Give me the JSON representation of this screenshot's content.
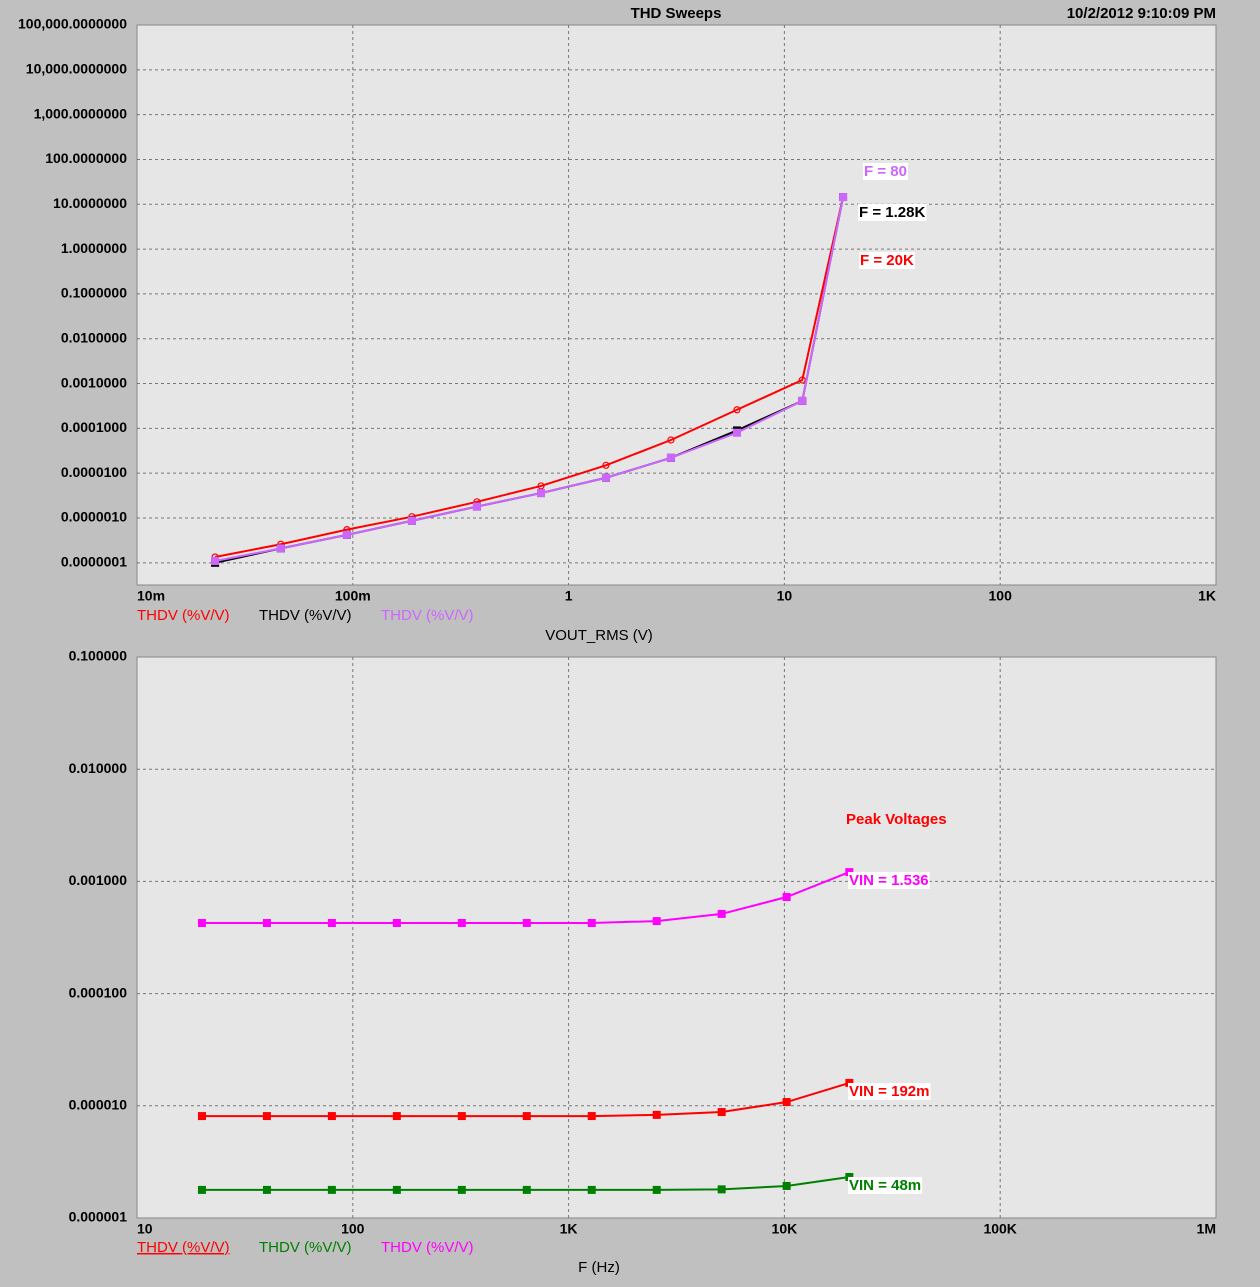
{
  "chart_data": [
    {
      "type": "line",
      "title": "THD Sweeps",
      "subtitle": "10/2/2012 9:10:09 PM",
      "x_label": "VOUT_RMS (V)",
      "xlog": true,
      "ylog": true,
      "grid": true,
      "xlim": [
        0.01,
        1000
      ],
      "ylim": [
        3.2e-08,
        100000
      ],
      "xticks": [
        {
          "value": 0.01,
          "label": "10m"
        },
        {
          "value": 0.1,
          "label": "100m"
        },
        1,
        10,
        100,
        {
          "value": 1000,
          "label": "1K"
        }
      ],
      "yticks": [
        {
          "value": 100000,
          "label": "100,000.0000000"
        },
        {
          "value": 10000,
          "label": "10,000.0000000"
        },
        {
          "value": 1000,
          "label": "1,000.0000000"
        },
        {
          "value": 100,
          "label": "100.0000000"
        },
        {
          "value": 10,
          "label": "10.0000000"
        },
        {
          "value": 1,
          "label": "1.0000000"
        },
        {
          "value": 0.1,
          "label": "0.1000000"
        },
        {
          "value": 0.01,
          "label": "0.0100000"
        },
        {
          "value": 0.001,
          "label": "0.0010000"
        },
        {
          "value": 0.0001,
          "label": "0.0001000"
        },
        {
          "value": 1e-05,
          "label": "0.0000100"
        },
        {
          "value": 1e-06,
          "label": "0.0000010"
        },
        {
          "value": 1e-07,
          "label": "0.0000001"
        }
      ],
      "x": [
        0.023,
        0.0464,
        0.0939,
        0.188,
        0.376,
        0.745,
        1.49,
        2.98,
        6.03,
        12.1,
        18.7
      ],
      "series": [
        {
          "name": "THDV (%V/V)",
          "color": "#ff0000",
          "marker": "circle",
          "values": [
            1.35e-07,
            2.6e-07,
            5.5e-07,
            1.07e-06,
            2.3e-06,
            5.2e-06,
            1.5e-05,
            5.5e-05,
            0.00026,
            0.0012,
            14.5
          ]
        },
        {
          "name": "THDV (%V/V)",
          "color": "#000000",
          "marker": "square",
          "values": [
            1e-07,
            2.1e-07,
            4.2e-07,
            8.7e-07,
            1.8e-06,
            3.6e-06,
            7.9e-06,
            2.2e-05,
            9e-05,
            0.00041,
            14.5
          ]
        },
        {
          "name": "THDV (%V/V)",
          "color": "#cc66ff",
          "marker": "square",
          "values": [
            1.1e-07,
            2.1e-07,
            4.2e-07,
            8.7e-07,
            1.8e-06,
            3.6e-06,
            7.9e-06,
            2.2e-05,
            8e-05,
            0.00041,
            14.5
          ]
        }
      ],
      "annotations": [
        {
          "text": "F = 80",
          "color": "#cc66ff"
        },
        {
          "text": "F = 1.28K",
          "color": "#000000"
        },
        {
          "text": "F = 20K",
          "color": "#ff0000"
        }
      ]
    },
    {
      "type": "line",
      "x_label": "F (Hz)",
      "xlog": true,
      "ylog": true,
      "grid": true,
      "xlim": [
        10,
        1000000
      ],
      "ylim": [
        1e-06,
        0.1
      ],
      "xticks": [
        10,
        100,
        {
          "value": 1000,
          "label": "1K"
        },
        {
          "value": 10000,
          "label": "10K"
        },
        {
          "value": 100000,
          "label": "100K"
        },
        {
          "value": 1000000,
          "label": "1M"
        }
      ],
      "yticks": [
        {
          "value": 0.1,
          "label": "0.100000"
        },
        {
          "value": 0.01,
          "label": "0.010000"
        },
        {
          "value": 0.001,
          "label": "0.001000"
        },
        {
          "value": 0.0001,
          "label": "0.000100"
        },
        {
          "value": 1e-05,
          "label": "0.000010"
        },
        {
          "value": 1e-06,
          "label": "0.000001"
        }
      ],
      "x": [
        20,
        40,
        80,
        160,
        320,
        640,
        1280,
        2560,
        5120,
        10240,
        20000
      ],
      "series": [
        {
          "name": "THDV (%V/V)",
          "color": "#ff0000",
          "marker": "square",
          "values": [
            8.1e-06,
            8.1e-06,
            8.1e-06,
            8.1e-06,
            8.1e-06,
            8.1e-06,
            8.1e-06,
            8.3e-06,
            8.8e-06,
            1.08e-05,
            1.6e-05
          ]
        },
        {
          "name": "THDV (%V/V)",
          "color": "#008000",
          "marker": "square",
          "values": [
            1.78e-06,
            1.78e-06,
            1.78e-06,
            1.78e-06,
            1.78e-06,
            1.78e-06,
            1.78e-06,
            1.78e-06,
            1.8e-06,
            1.93e-06,
            2.32e-06
          ]
        },
        {
          "name": "THDV (%V/V)",
          "color": "#ff00ff",
          "marker": "square",
          "values": [
            0.000426,
            0.000426,
            0.000426,
            0.000426,
            0.000426,
            0.000426,
            0.000426,
            0.000443,
            0.000513,
            0.000726,
            0.00121
          ]
        }
      ],
      "annotations": [
        {
          "text": "Peak Voltages",
          "color": "#ff0000"
        },
        {
          "text": "VIN = 1.536",
          "color": "#ff00ff"
        },
        {
          "text": "VIN = 192m",
          "color": "#ff0000"
        },
        {
          "text": "VIN = 48m",
          "color": "#008000"
        }
      ]
    }
  ]
}
